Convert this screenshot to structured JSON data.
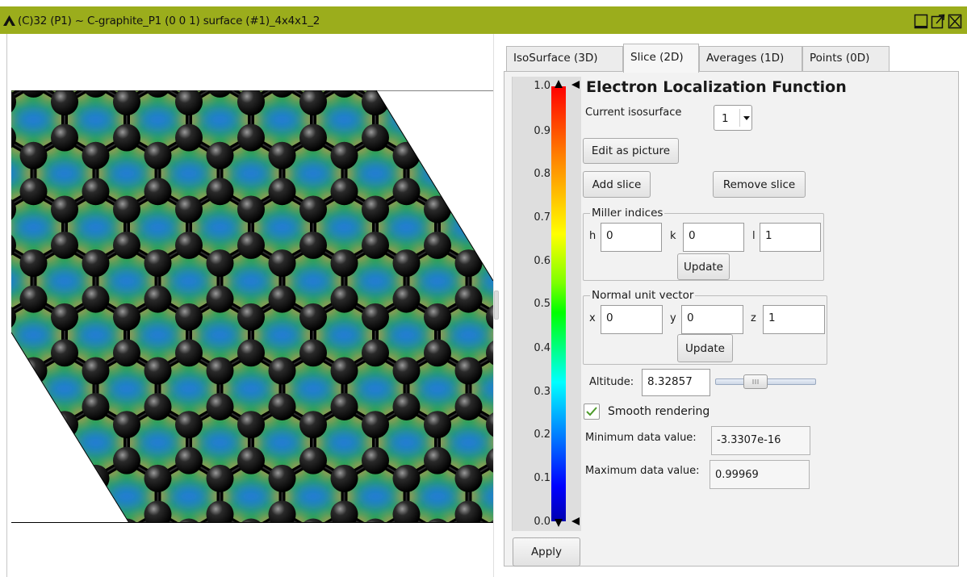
{
  "window": {
    "title": "(C)32  (P1) ~ C-graphite_P1 (0 0 1)  surface (#1)_4x4x1_2"
  },
  "tabs": [
    {
      "label": "IsoSurface (3D)",
      "active": false
    },
    {
      "label": "Slice (2D)",
      "active": true
    },
    {
      "label": "Averages (1D)",
      "active": false
    },
    {
      "label": "Points (0D)",
      "active": false
    }
  ],
  "colorscale": {
    "ticks": [
      "1.0",
      "0.9",
      "0.8",
      "0.7",
      "0.6",
      "0.5",
      "0.4",
      "0.3",
      "0.2",
      "0.1",
      "0.0"
    ]
  },
  "panel": {
    "heading": "Electron Localization Function",
    "current_isosurface_label": "Current isosurface",
    "current_isosurface_value": "1",
    "edit_as_picture": "Edit as picture",
    "add_slice": "Add slice",
    "remove_slice": "Remove slice",
    "miller": {
      "title": "Miller indices",
      "h_label": "h",
      "h_value": "0",
      "k_label": "k",
      "k_value": "0",
      "l_label": "l",
      "l_value": "1",
      "update": "Update"
    },
    "normal": {
      "title": "Normal unit vector",
      "x_label": "x",
      "x_value": "0",
      "y_label": "y",
      "y_value": "0",
      "z_label": "z",
      "z_value": "1",
      "update": "Update"
    },
    "altitude_label": "Altitude:",
    "altitude_value": "8.32857",
    "altitude_slider_fraction": 0.37,
    "smooth_rendering_label": "Smooth rendering",
    "smooth_rendering_checked": true,
    "min_label": "Minimum data value:",
    "min_value": "-3.3307e-16",
    "max_label": "Maximum data value:",
    "max_value": "0.99969",
    "apply": "Apply"
  },
  "colors": {
    "titlebar": "#9bad1c",
    "map_background": "#2aa84a",
    "map_peak": "#c9965a",
    "map_low": "#1a6fff",
    "atom": "#0a0a0a",
    "checkmark": "#4c9a2a"
  },
  "icons": {
    "app": "triangle-logo-icon",
    "minimize": "minimize-icon",
    "detach": "detach-icon",
    "close": "close-icon",
    "dropdown": "chevron-down-icon",
    "check": "checkmark-icon"
  }
}
